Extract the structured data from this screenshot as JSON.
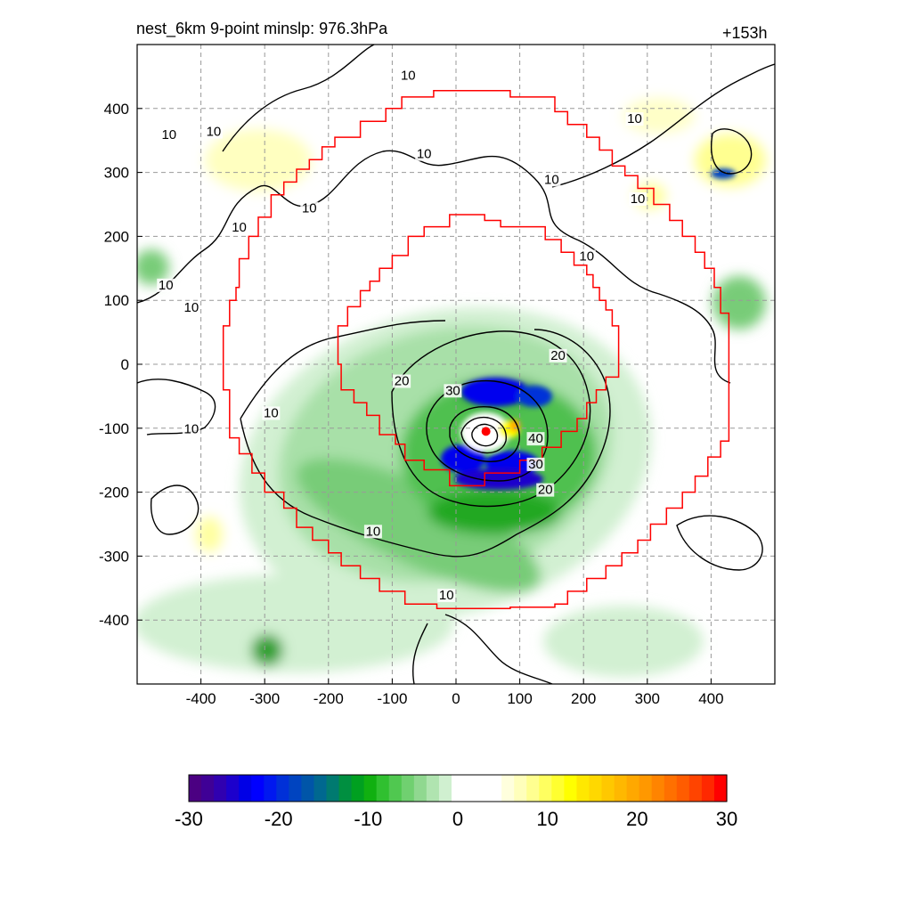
{
  "title_left": "nest_6km  9-point minslp: 976.3hPa",
  "title_right": "+153h",
  "chart_data": {
    "type": "heatmap",
    "x": {
      "range": [
        -500,
        500
      ],
      "ticks": [
        -400,
        -300,
        -200,
        -100,
        0,
        100,
        200,
        300,
        400
      ]
    },
    "y": {
      "range": [
        -500,
        500
      ],
      "ticks": [
        400,
        300,
        200,
        100,
        0,
        -100,
        -200,
        -300,
        -400
      ]
    },
    "grid": true,
    "storm_center": {
      "x": 47,
      "y": -105,
      "color": "#ff0000"
    },
    "contour_levels": [
      10,
      20,
      30,
      40
    ],
    "contour_labels": [
      {
        "text": "10",
        "x": -450,
        "y": 355
      },
      {
        "text": "10",
        "x": -380,
        "y": 360
      },
      {
        "text": "10",
        "x": -455,
        "y": 120
      },
      {
        "text": "10",
        "x": -415,
        "y": 85
      },
      {
        "text": "10",
        "x": -340,
        "y": 210
      },
      {
        "text": "10",
        "x": -230,
        "y": 240
      },
      {
        "text": "10",
        "x": -75,
        "y": 448
      },
      {
        "text": "10",
        "x": -50,
        "y": 325
      },
      {
        "text": "10",
        "x": 150,
        "y": 285
      },
      {
        "text": "10",
        "x": 280,
        "y": 380
      },
      {
        "text": "10",
        "x": 285,
        "y": 255
      },
      {
        "text": "10",
        "x": 205,
        "y": 165
      },
      {
        "text": "10",
        "x": -415,
        "y": -105
      },
      {
        "text": "10",
        "x": -290,
        "y": -80
      },
      {
        "text": "10",
        "x": -130,
        "y": -265
      },
      {
        "text": "10",
        "x": -15,
        "y": -365
      },
      {
        "text": "20",
        "x": -85,
        "y": -30
      },
      {
        "text": "30",
        "x": -5,
        "y": -45
      },
      {
        "text": "20",
        "x": 160,
        "y": 10
      },
      {
        "text": "40",
        "x": 125,
        "y": -120
      },
      {
        "text": "30",
        "x": 125,
        "y": -160
      },
      {
        "text": "20",
        "x": 140,
        "y": -200
      }
    ],
    "inner_boundary": [
      [
        0,
        234
      ],
      [
        45,
        234
      ],
      [
        45,
        225
      ],
      [
        70,
        225
      ],
      [
        70,
        215
      ],
      [
        140,
        215
      ],
      [
        140,
        195
      ],
      [
        165,
        195
      ],
      [
        165,
        175
      ],
      [
        185,
        175
      ],
      [
        185,
        155
      ],
      [
        205,
        155
      ],
      [
        205,
        140
      ],
      [
        215,
        140
      ],
      [
        215,
        120
      ],
      [
        225,
        120
      ],
      [
        225,
        100
      ],
      [
        235,
        100
      ],
      [
        235,
        85
      ],
      [
        245,
        85
      ],
      [
        245,
        60
      ],
      [
        255,
        60
      ],
      [
        255,
        -20
      ],
      [
        235,
        -20
      ],
      [
        235,
        -40
      ],
      [
        220,
        -40
      ],
      [
        220,
        -60
      ],
      [
        205,
        -60
      ],
      [
        205,
        -85
      ],
      [
        190,
        -85
      ],
      [
        190,
        -105
      ],
      [
        165,
        -105
      ],
      [
        165,
        -130
      ],
      [
        135,
        -130
      ],
      [
        135,
        -150
      ],
      [
        100,
        -150
      ],
      [
        100,
        -170
      ],
      [
        45,
        -170
      ],
      [
        45,
        -190
      ],
      [
        -10,
        -190
      ],
      [
        -10,
        -165
      ],
      [
        -50,
        -165
      ],
      [
        -50,
        -150
      ],
      [
        -80,
        -150
      ],
      [
        -80,
        -125
      ],
      [
        -95,
        -125
      ],
      [
        -95,
        -110
      ],
      [
        -120,
        -110
      ],
      [
        -120,
        -80
      ],
      [
        -140,
        -80
      ],
      [
        -140,
        -60
      ],
      [
        -160,
        -60
      ],
      [
        -160,
        -40
      ],
      [
        -180,
        -40
      ],
      [
        -180,
        0
      ],
      [
        -185,
        0
      ],
      [
        -185,
        60
      ],
      [
        -170,
        60
      ],
      [
        -170,
        90
      ],
      [
        -150,
        90
      ],
      [
        -150,
        115
      ],
      [
        -135,
        115
      ],
      [
        -135,
        130
      ],
      [
        -120,
        130
      ],
      [
        -120,
        150
      ],
      [
        -100,
        150
      ],
      [
        -100,
        170
      ],
      [
        -75,
        170
      ],
      [
        -75,
        200
      ],
      [
        -50,
        200
      ],
      [
        -50,
        215
      ],
      [
        -10,
        215
      ],
      [
        -10,
        234
      ],
      [
        0,
        234
      ]
    ],
    "outer_boundary": [
      [
        0,
        428
      ],
      [
        85,
        428
      ],
      [
        85,
        418
      ],
      [
        155,
        418
      ],
      [
        155,
        395
      ],
      [
        175,
        395
      ],
      [
        175,
        375
      ],
      [
        205,
        375
      ],
      [
        205,
        355
      ],
      [
        225,
        355
      ],
      [
        225,
        335
      ],
      [
        245,
        335
      ],
      [
        245,
        310
      ],
      [
        265,
        310
      ],
      [
        265,
        295
      ],
      [
        285,
        295
      ],
      [
        285,
        275
      ],
      [
        310,
        275
      ],
      [
        310,
        250
      ],
      [
        335,
        250
      ],
      [
        335,
        225
      ],
      [
        355,
        225
      ],
      [
        355,
        200
      ],
      [
        375,
        200
      ],
      [
        375,
        175
      ],
      [
        390,
        175
      ],
      [
        390,
        150
      ],
      [
        405,
        150
      ],
      [
        405,
        120
      ],
      [
        415,
        120
      ],
      [
        415,
        80
      ],
      [
        428,
        80
      ],
      [
        428,
        -120
      ],
      [
        415,
        -120
      ],
      [
        415,
        -145
      ],
      [
        395,
        -145
      ],
      [
        395,
        -175
      ],
      [
        375,
        -175
      ],
      [
        375,
        -200
      ],
      [
        355,
        -200
      ],
      [
        355,
        -225
      ],
      [
        330,
        -225
      ],
      [
        330,
        -250
      ],
      [
        305,
        -250
      ],
      [
        305,
        -275
      ],
      [
        285,
        -275
      ],
      [
        285,
        -295
      ],
      [
        260,
        -295
      ],
      [
        260,
        -315
      ],
      [
        235,
        -315
      ],
      [
        235,
        -335
      ],
      [
        205,
        -335
      ],
      [
        205,
        -355
      ],
      [
        175,
        -355
      ],
      [
        175,
        -375
      ],
      [
        155,
        -375
      ],
      [
        155,
        -380
      ],
      [
        85,
        -380
      ],
      [
        85,
        -382
      ],
      [
        -30,
        -382
      ],
      [
        -30,
        -375
      ],
      [
        -80,
        -375
      ],
      [
        -80,
        -355
      ],
      [
        -120,
        -355
      ],
      [
        -120,
        -335
      ],
      [
        -150,
        -335
      ],
      [
        -150,
        -315
      ],
      [
        -180,
        -315
      ],
      [
        -180,
        -295
      ],
      [
        -200,
        -295
      ],
      [
        -200,
        -275
      ],
      [
        -225,
        -275
      ],
      [
        -225,
        -255
      ],
      [
        -250,
        -255
      ],
      [
        -250,
        -225
      ],
      [
        -270,
        -225
      ],
      [
        -270,
        -200
      ],
      [
        -300,
        -200
      ],
      [
        -300,
        -170
      ],
      [
        -320,
        -170
      ],
      [
        -320,
        -140
      ],
      [
        -340,
        -140
      ],
      [
        -340,
        -115
      ],
      [
        -355,
        -115
      ],
      [
        -355,
        -40
      ],
      [
        -365,
        -40
      ],
      [
        -365,
        60
      ],
      [
        -355,
        60
      ],
      [
        -355,
        100
      ],
      [
        -345,
        100
      ],
      [
        -345,
        120
      ],
      [
        -340,
        120
      ],
      [
        -340,
        165
      ],
      [
        -325,
        165
      ],
      [
        -325,
        200
      ],
      [
        -310,
        200
      ],
      [
        -310,
        230
      ],
      [
        -290,
        230
      ],
      [
        -290,
        265
      ],
      [
        -270,
        265
      ],
      [
        -270,
        285
      ],
      [
        -250,
        285
      ],
      [
        -250,
        305
      ],
      [
        -230,
        305
      ],
      [
        -230,
        320
      ],
      [
        -210,
        320
      ],
      [
        -210,
        340
      ],
      [
        -190,
        340
      ],
      [
        -190,
        355
      ],
      [
        -150,
        355
      ],
      [
        -150,
        380
      ],
      [
        -110,
        380
      ],
      [
        -110,
        400
      ],
      [
        -85,
        400
      ],
      [
        -85,
        418
      ],
      [
        -35,
        418
      ],
      [
        -35,
        428
      ],
      [
        0,
        428
      ]
    ],
    "colorbar": {
      "ticks": [
        -30,
        -20,
        -10,
        0,
        10,
        20,
        30
      ],
      "range": [
        -30,
        30
      ],
      "colors": [
        "#4b0082",
        "#3f0096",
        "#3000b0",
        "#1c00cc",
        "#0000e6",
        "#0000ff",
        "#0018f0",
        "#0030d8",
        "#0044c0",
        "#0055a8",
        "#006890",
        "#007a70",
        "#008f40",
        "#00a020",
        "#10b010",
        "#30c030",
        "#50c850",
        "#70d070",
        "#90d890",
        "#b0e4b0",
        "#d0f0d0",
        "#ffffff",
        "#ffffff",
        "#ffffff",
        "#ffffff",
        "#ffffdd",
        "#ffffbb",
        "#ffff90",
        "#ffff60",
        "#ffff30",
        "#ffff00",
        "#ffe800",
        "#ffd800",
        "#ffc800",
        "#ffb800",
        "#ffa800",
        "#ff9800",
        "#ff8400",
        "#ff7000",
        "#ff5c00",
        "#ff4400",
        "#ff2800",
        "#ff0000"
      ]
    }
  }
}
